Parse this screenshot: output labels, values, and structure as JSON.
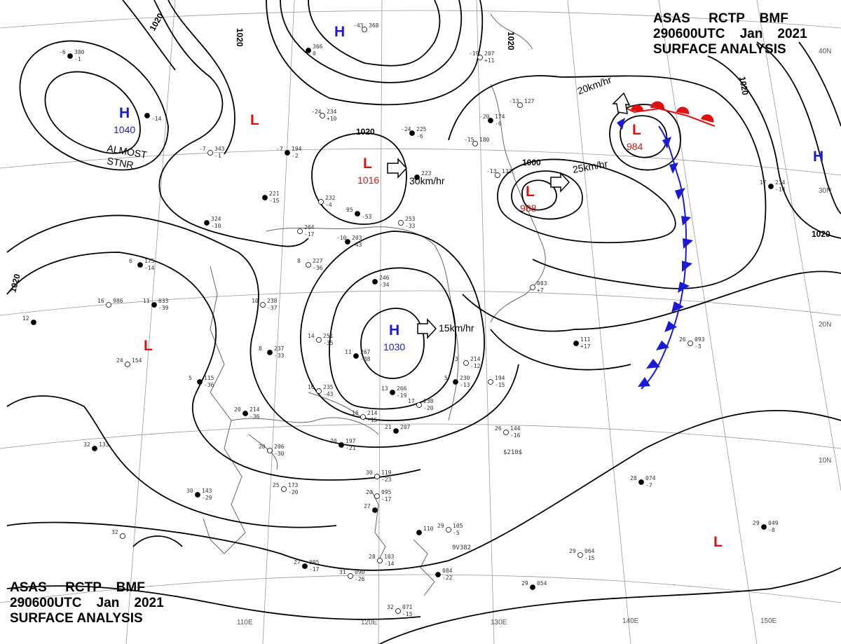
{
  "header": {
    "line1": "ASAS     RCTP    BMF",
    "line2": "290600UTC    Jan    2021",
    "line3": "SURFACE ANALYSIS"
  },
  "colors": {
    "high": "#1a1ad6",
    "low": "#e01010",
    "front_warm": "#e01010",
    "front_cold": "#1a1ad6",
    "isobar": "#000000",
    "grid": "#9a9a9a"
  },
  "longitudes": [
    "110E",
    "120E",
    "130E",
    "140E",
    "150E"
  ],
  "latitudes": [
    "10N",
    "20N",
    "30N",
    "40N"
  ],
  "isobar_labels": [
    "1020",
    "1020",
    "1020",
    "1020",
    "1020",
    "1020",
    "1020",
    "1000"
  ],
  "pressure_centers": [
    {
      "type": "H",
      "value": "1040"
    },
    {
      "type": "H",
      "value": ""
    },
    {
      "type": "H",
      "value": "1030"
    },
    {
      "type": "H",
      "value": ""
    },
    {
      "type": "L",
      "value": "1016"
    },
    {
      "type": "L",
      "value": "988"
    },
    {
      "type": "L",
      "value": "984"
    },
    {
      "type": "L",
      "value": ""
    },
    {
      "type": "L",
      "value": ""
    },
    {
      "type": "L",
      "value": ""
    }
  ],
  "motion_labels": [
    "30km/hr",
    "25km/hr",
    "20km/hr",
    "15km/hr"
  ],
  "annotations": [
    "ALMOST",
    "STNR"
  ],
  "stations": [
    {
      "num": "380",
      "aux": "-1",
      "t": "-6"
    },
    {
      "num": "368",
      "aux": "",
      "t": "-43"
    },
    {
      "num": "366",
      "aux": "0",
      "t": ""
    },
    {
      "num": "207",
      "aux": "+11",
      "t": "-19"
    },
    {
      "num": "",
      "aux": "-14",
      "t": ""
    },
    {
      "num": "343",
      "aux": "-1",
      "t": "-7"
    },
    {
      "num": "194",
      "aux": "-2",
      "t": "-7"
    },
    {
      "num": "234",
      "aux": "+10",
      "t": "-24"
    },
    {
      "num": "225",
      "aux": "-6",
      "t": "-24"
    },
    {
      "num": "127",
      "aux": "",
      "t": "-13"
    },
    {
      "num": "174",
      "aux": "-6",
      "t": "-20"
    },
    {
      "num": "180",
      "aux": "",
      "t": "-15"
    },
    {
      "num": "221",
      "aux": "-15",
      "t": ""
    },
    {
      "num": "232",
      "aux": "-4",
      "t": ""
    },
    {
      "num": "",
      "aux": "-53",
      "t": "95"
    },
    {
      "num": "253",
      "aux": "-33",
      "t": ""
    },
    {
      "num": "223",
      "aux": "",
      "t": ""
    },
    {
      "num": "133",
      "aux": "",
      "t": "-13"
    },
    {
      "num": "324",
      "aux": "-10",
      "t": ""
    },
    {
      "num": "264",
      "aux": "-17",
      "t": ""
    },
    {
      "num": "203",
      "aux": "-43",
      "t": "-10"
    },
    {
      "num": "227",
      "aux": "-36",
      "t": "8"
    },
    {
      "num": "175",
      "aux": "-14",
      "t": "6"
    },
    {
      "num": "986",
      "aux": "",
      "t": "16"
    },
    {
      "num": "033",
      "aux": "-39",
      "t": "11"
    },
    {
      "num": "238",
      "aux": "-37",
      "t": "10"
    },
    {
      "num": "246",
      "aux": "-34",
      "t": ""
    },
    {
      "num": "083",
      "aux": "+7",
      "t": ""
    },
    {
      "num": "",
      "aux": "",
      "t": "12"
    },
    {
      "num": "154",
      "aux": "",
      "t": "24"
    },
    {
      "num": "237",
      "aux": "-33",
      "t": "8"
    },
    {
      "num": "251",
      "aux": "-35",
      "t": "14"
    },
    {
      "num": "267",
      "aux": "-38",
      "t": "11"
    },
    {
      "num": "214",
      "aux": "-12",
      "t": "3"
    },
    {
      "num": "111",
      "aux": "+17",
      "t": ""
    },
    {
      "num": "093",
      "aux": "-3",
      "t": "26"
    },
    {
      "num": "115",
      "aux": "-36",
      "t": "5"
    },
    {
      "num": "235",
      "aux": "-43",
      "t": "16"
    },
    {
      "num": "230",
      "aux": "-13",
      "t": "5"
    },
    {
      "num": "194",
      "aux": "-15",
      "t": ""
    },
    {
      "num": "266",
      "aux": "-19",
      "t": "13"
    },
    {
      "num": "238",
      "aux": "-20",
      "t": "17"
    },
    {
      "num": "214",
      "aux": "-36",
      "t": "20"
    },
    {
      "num": "214",
      "aux": "-15",
      "t": "16"
    },
    {
      "num": "207",
      "aux": "",
      "t": "21"
    },
    {
      "num": "144",
      "aux": "-16",
      "t": "26"
    },
    {
      "num": "133",
      "aux": "",
      "t": "32"
    },
    {
      "num": "206",
      "aux": "-30",
      "t": "20"
    },
    {
      "num": "197",
      "aux": "-21",
      "t": "20"
    },
    {
      "num": "119",
      "aux": "-23",
      "t": "30"
    },
    {
      "num": "074",
      "aux": "-7",
      "t": "28"
    },
    {
      "num": "173",
      "aux": "-20",
      "t": "25"
    },
    {
      "num": "143",
      "aux": "-29",
      "t": "30"
    },
    {
      "num": "095",
      "aux": "-17",
      "t": "20"
    },
    {
      "num": "",
      "aux": "",
      "t": "27"
    },
    {
      "num": "105",
      "aux": "-5",
      "t": "29"
    },
    {
      "num": "110",
      "aux": "",
      "t": ""
    },
    {
      "num": "064",
      "aux": "-15",
      "t": "29"
    },
    {
      "num": "049",
      "aux": "-8",
      "t": "29"
    },
    {
      "num": "",
      "aux": "",
      "t": "32"
    },
    {
      "num": "095",
      "aux": "-17",
      "t": "27"
    },
    {
      "num": "103",
      "aux": "-14",
      "t": "28"
    },
    {
      "num": "084",
      "aux": "-22",
      "t": ""
    },
    {
      "num": "090",
      "aux": "-26",
      "t": "31"
    },
    {
      "num": "054",
      "aux": "",
      "t": "29"
    },
    {
      "num": "071",
      "aux": "-15",
      "t": "32"
    },
    {
      "num": "234",
      "aux": "-14",
      "t": "17"
    }
  ],
  "extra_labels": [
    "$210$",
    "9V382"
  ]
}
